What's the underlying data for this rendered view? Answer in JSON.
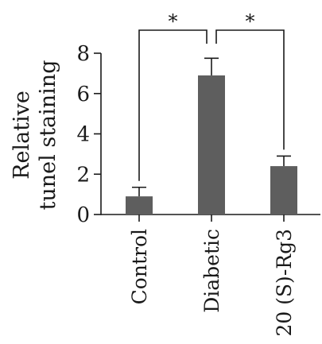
{
  "chart_data": {
    "type": "bar",
    "title": "",
    "xlabel": "",
    "ylabel": [
      "Relative",
      "tunel staining"
    ],
    "categories": [
      "Control",
      "Diabetic",
      "20 (S)-Rg3"
    ],
    "values": [
      0.9,
      6.9,
      2.4
    ],
    "errors": [
      0.45,
      0.85,
      0.5
    ],
    "ylim": [
      0,
      8
    ],
    "yticks": [
      0,
      2,
      4,
      6,
      8
    ],
    "bar_color": "#5e5e5e",
    "grid": false,
    "legend": "none",
    "significance": [
      {
        "from": 0,
        "to": 1,
        "label": "*"
      },
      {
        "from": 1,
        "to": 2,
        "label": "*"
      }
    ]
  }
}
